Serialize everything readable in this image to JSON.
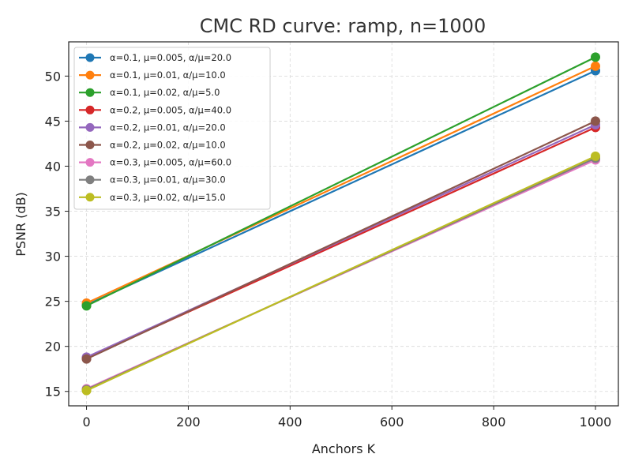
{
  "chart_data": {
    "type": "line",
    "title": "CMC RD curve: ramp, n=1000",
    "xlabel": "Anchors K",
    "ylabel": "PSNR (dB)",
    "xlim": [
      -35,
      1045
    ],
    "ylim": [
      13.4,
      53.8
    ],
    "xticks": [
      0,
      200,
      400,
      600,
      800,
      1000
    ],
    "yticks": [
      15,
      20,
      25,
      30,
      35,
      40,
      45,
      50
    ],
    "grid": true,
    "legend_position": "top-left",
    "x": [
      0,
      1000
    ],
    "series": [
      {
        "name": "α=0.1, μ=0.005, α/μ=20.0",
        "color": "#1f77b4",
        "values": [
          24.6,
          50.6
        ]
      },
      {
        "name": "α=0.1, μ=0.01, α/μ=10.0",
        "color": "#ff7f0e",
        "values": [
          24.8,
          51.1
        ]
      },
      {
        "name": "α=0.1, μ=0.02, α/μ=5.0",
        "color": "#2ca02c",
        "values": [
          24.5,
          52.1
        ]
      },
      {
        "name": "α=0.2, μ=0.005, α/μ=40.0",
        "color": "#d62728",
        "values": [
          18.7,
          44.3
        ]
      },
      {
        "name": "α=0.2, μ=0.01, α/μ=20.0",
        "color": "#9467bd",
        "values": [
          18.8,
          44.6
        ]
      },
      {
        "name": "α=0.2, μ=0.02, α/μ=10.0",
        "color": "#8c564b",
        "values": [
          18.6,
          45.0
        ]
      },
      {
        "name": "α=0.3, μ=0.005, α/μ=60.0",
        "color": "#e377c2",
        "values": [
          15.3,
          40.7
        ]
      },
      {
        "name": "α=0.3, μ=0.01, α/μ=30.0",
        "color": "#7f7f7f",
        "values": [
          15.2,
          40.9
        ]
      },
      {
        "name": "α=0.3, μ=0.02, α/μ=15.0",
        "color": "#bcbd22",
        "values": [
          15.1,
          41.1
        ]
      }
    ]
  }
}
